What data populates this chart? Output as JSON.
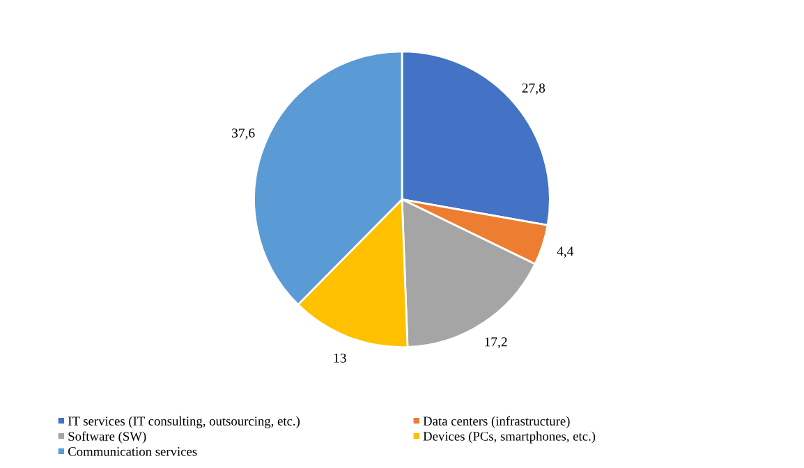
{
  "chart_data": {
    "type": "pie",
    "categories": [
      "IT services (IT consulting, outsourcing, etc.)",
      "Data centers (infrastructure)",
      "Software (SW)",
      "Devices (PCs, smartphones, etc.)",
      "Communication services"
    ],
    "values": [
      27.8,
      4.4,
      17.2,
      13,
      37.6
    ],
    "colors": [
      "#4472c4",
      "#ed7d31",
      "#a5a5a5",
      "#ffc000",
      "#5b9bd5"
    ],
    "value_labels": [
      "27,8",
      "4,4",
      "17,2",
      "13",
      "37,6"
    ],
    "legend": "bottom"
  }
}
